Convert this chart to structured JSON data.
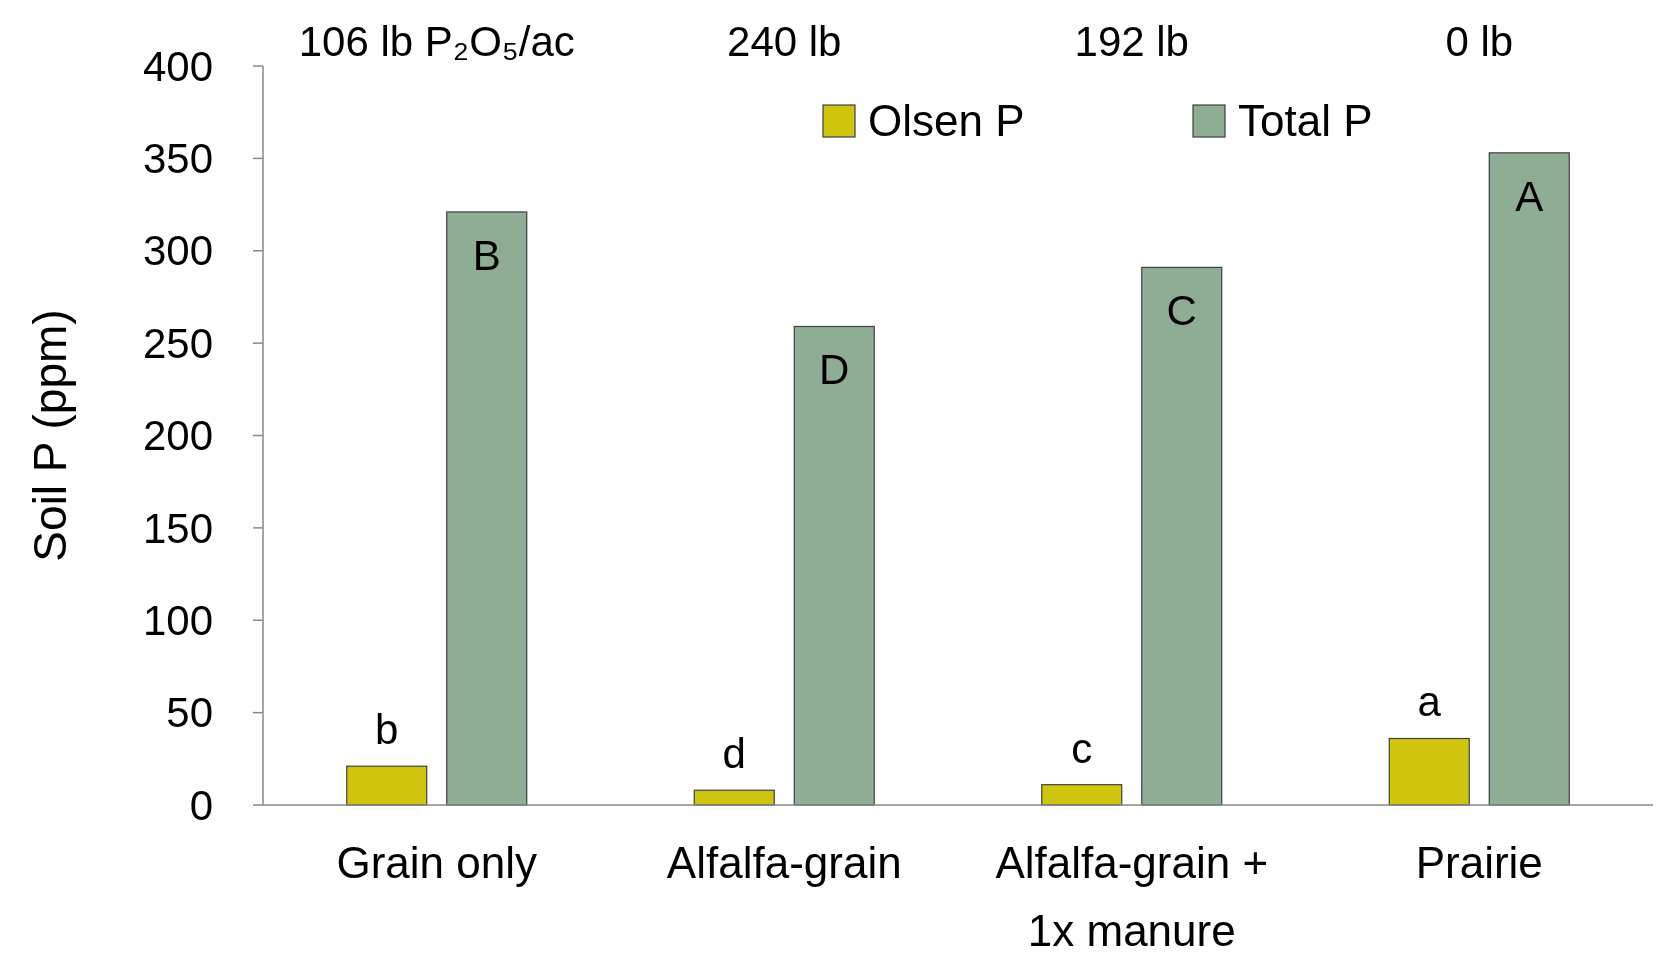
{
  "chart_data": {
    "type": "bar",
    "ylabel": "Soil P (ppm)",
    "categories": [
      "Grain only",
      "Alfalfa-grain",
      "Alfalfa-grain + 1x manure",
      "Prairie"
    ],
    "series": [
      {
        "name": "Olsen P",
        "color": "#cfc50f",
        "values": [
          21,
          8,
          11,
          36
        ]
      },
      {
        "name": "Total P",
        "color": "#8fac94",
        "values": [
          321,
          259,
          291,
          353
        ]
      }
    ],
    "ylim": [
      0,
      400
    ],
    "yticks": [
      0,
      50,
      100,
      150,
      200,
      250,
      300,
      350,
      400
    ],
    "grid": false,
    "legend": "top right",
    "annotations": [
      "106 lb P₂O₅/ac",
      "240 lb",
      "192 lb",
      "0 lb",
      "B",
      "D",
      "C",
      "A",
      "b",
      "d",
      "c",
      "a"
    ]
  }
}
